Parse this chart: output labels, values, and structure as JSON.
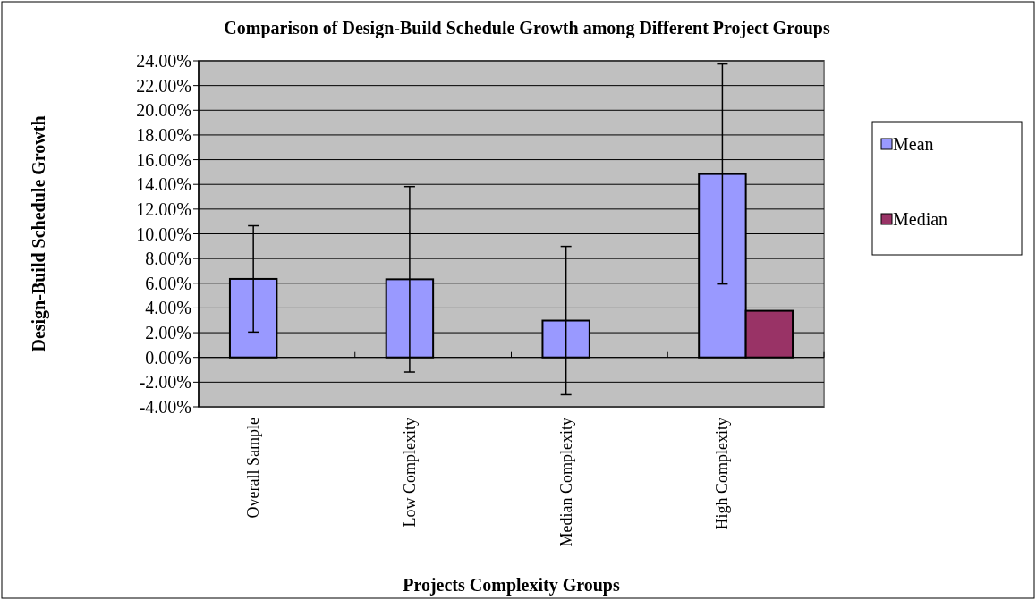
{
  "chart_data": {
    "type": "bar",
    "title": "Comparison of Design-Build Schedule Growth among Different Project Groups",
    "xlabel": "Projects Complexity Groups",
    "ylabel": "Design-Build Schedule Growth",
    "categories": [
      "Overall Sample",
      "Low Complexity",
      "Median Complexity",
      "High Complexity"
    ],
    "series": [
      {
        "name": "Mean",
        "color": "#9999ff",
        "values": [
          6.35,
          6.32,
          2.98,
          14.84
        ],
        "errors": [
          4.3,
          7.5,
          6.0,
          8.9
        ]
      },
      {
        "name": "Median",
        "color": "#993366",
        "values": [
          null,
          null,
          null,
          3.77
        ]
      }
    ],
    "ylim": [
      -4,
      24
    ],
    "yticks": [
      {
        "value": -4,
        "label": "-4.00%"
      },
      {
        "value": -2,
        "label": "-2.00%"
      },
      {
        "value": 0,
        "label": "0.00%"
      },
      {
        "value": 2,
        "label": "2.00%"
      },
      {
        "value": 4,
        "label": "4.00%"
      },
      {
        "value": 6,
        "label": "6.00%"
      },
      {
        "value": 8,
        "label": "8.00%"
      },
      {
        "value": 10,
        "label": "10.00%"
      },
      {
        "value": 12,
        "label": "12.00%"
      },
      {
        "value": 14,
        "label": "14.00%"
      },
      {
        "value": 16,
        "label": "16.00%"
      },
      {
        "value": 18,
        "label": "18.00%"
      },
      {
        "value": 20,
        "label": "20.00%"
      },
      {
        "value": 22,
        "label": "22.00%"
      },
      {
        "value": 24,
        "label": "24.00%"
      }
    ],
    "grid": "y",
    "legend": "right"
  }
}
